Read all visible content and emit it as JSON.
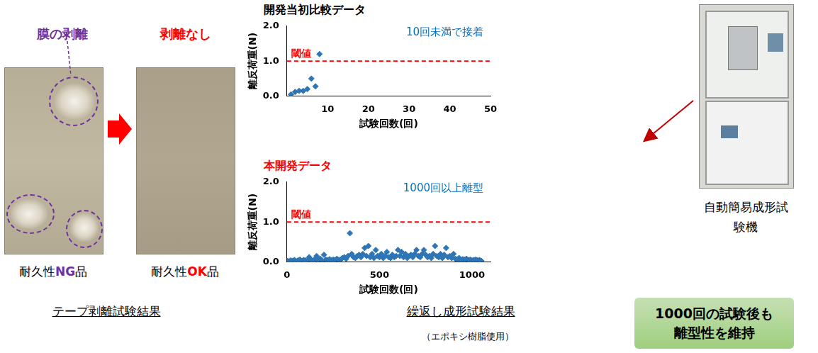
{
  "tape_test": {
    "labels": [
      {
        "text": "膜の剥離",
        "color": "#7030a0"
      },
      {
        "text": "剥離なし",
        "color": "#ff0000"
      }
    ],
    "items": [
      [
        {
          "text": "耐久性"
        },
        {
          "text": "NG",
          "color": "#7030a0"
        },
        {
          "text": "品"
        }
      ],
      [
        {
          "text": "耐久性"
        },
        {
          "text": "OK",
          "color": "#ff0000"
        },
        {
          "text": "品"
        }
      ]
    ],
    "caption": "テープ剥離試験結果"
  },
  "chart_data": [
    {
      "type": "scatter",
      "title": "開発当初比較データ",
      "x_label": "試験回数(回)",
      "y_label": "離反荷重(N)",
      "x": [
        1,
        2,
        3,
        4,
        5,
        6,
        7,
        8
      ],
      "values": [
        0.05,
        0.12,
        0.15,
        0.15,
        0.2,
        0.5,
        0.28,
        1.2
      ],
      "color": "#2e75b6",
      "marker": "diamond",
      "xlim": [
        0,
        50
      ],
      "xticks": [
        10,
        20,
        30,
        40,
        50
      ],
      "ylim": [
        0,
        2
      ],
      "yticks": [
        {
          "value": 0,
          "label": "0.0"
        },
        {
          "value": 1,
          "label": "1.0"
        },
        {
          "value": 2,
          "label": "2.0"
        }
      ],
      "grid": false,
      "threshold": {
        "value": 1.0,
        "label": "閾値",
        "color": "#ff0000",
        "line_style": "dashed"
      },
      "annotation": {
        "text": "10回未満で接着",
        "color": "#0070c0"
      }
    },
    {
      "type": "scatter",
      "title": "本開発データ",
      "x_label": "試験回数(回)",
      "y_label": "離反荷重(N)",
      "x": [
        0,
        10,
        20,
        30,
        40,
        50,
        60,
        70,
        80,
        90,
        100,
        110,
        120,
        130,
        140,
        150,
        160,
        170,
        180,
        190,
        200,
        210,
        220,
        230,
        240,
        250,
        260,
        270,
        280,
        290,
        300,
        310,
        320,
        330,
        340,
        350,
        360,
        370,
        380,
        390,
        400,
        410,
        420,
        430,
        440,
        450,
        460,
        470,
        480,
        490,
        500,
        510,
        520,
        530,
        540,
        550,
        560,
        570,
        580,
        590,
        600,
        610,
        620,
        630,
        640,
        650,
        660,
        670,
        680,
        690,
        700,
        710,
        720,
        730,
        740,
        750,
        760,
        770,
        780,
        790,
        800,
        810,
        820,
        830,
        840,
        850,
        860,
        870,
        880,
        890,
        900,
        910,
        920,
        930,
        940,
        950,
        960,
        970,
        980,
        990,
        1000,
        1010,
        1020,
        1030,
        1040,
        1050
      ],
      "values": [
        0.03,
        0.02,
        0.04,
        0.03,
        0.05,
        0.02,
        0.04,
        0.06,
        0.03,
        0.05,
        0.04,
        0.03,
        0.12,
        0.05,
        0.04,
        0.06,
        0.15,
        0.05,
        0.08,
        0.04,
        0.18,
        0.06,
        0.05,
        0.07,
        0.04,
        0.06,
        0.05,
        0.08,
        0.05,
        0.06,
        0.1,
        0.12,
        0.08,
        0.15,
        0.72,
        0.2,
        0.12,
        0.1,
        0.15,
        0.18,
        0.12,
        0.2,
        0.35,
        0.15,
        0.4,
        0.12,
        0.2,
        0.1,
        0.3,
        0.15,
        0.12,
        0.2,
        0.1,
        0.15,
        0.25,
        0.12,
        0.1,
        0.18,
        0.12,
        0.15,
        0.3,
        0.15,
        0.25,
        0.12,
        0.2,
        0.1,
        0.15,
        0.18,
        0.12,
        0.2,
        0.3,
        0.15,
        0.12,
        0.2,
        0.3,
        0.18,
        0.12,
        0.15,
        0.1,
        0.2,
        0.4,
        0.15,
        0.12,
        0.2,
        0.1,
        0.18,
        0.35,
        0.12,
        0.15,
        0.1,
        0.2,
        0.08,
        0.06,
        0.1,
        0.05,
        0.07,
        0.06,
        0.08,
        0.05,
        0.06,
        0.04,
        0.05,
        0.06,
        0.04,
        0.05,
        0.03
      ],
      "color": "#2e75b6",
      "marker": "diamond",
      "xlim": [
        0,
        1100
      ],
      "xticks": [
        0,
        500,
        1000
      ],
      "ylim": [
        0,
        2
      ],
      "yticks": [
        {
          "value": 0,
          "label": "0.0"
        },
        {
          "value": 1,
          "label": "1.0"
        },
        {
          "value": 2,
          "label": "2.0"
        }
      ],
      "grid": false,
      "threshold": {
        "value": 1.0,
        "label": "閾値",
        "color": "#ff0000",
        "line_style": "dashed"
      },
      "annotation": {
        "text": "1000回以上離型",
        "color": "#0070c0"
      }
    }
  ],
  "chart_caption": "繰返し成形試験結果",
  "chart_note": "（エポキシ樹脂使用）",
  "machine_label": "自動簡易成形試験機",
  "conclusion": "1000回の試験後も離型性を維持"
}
